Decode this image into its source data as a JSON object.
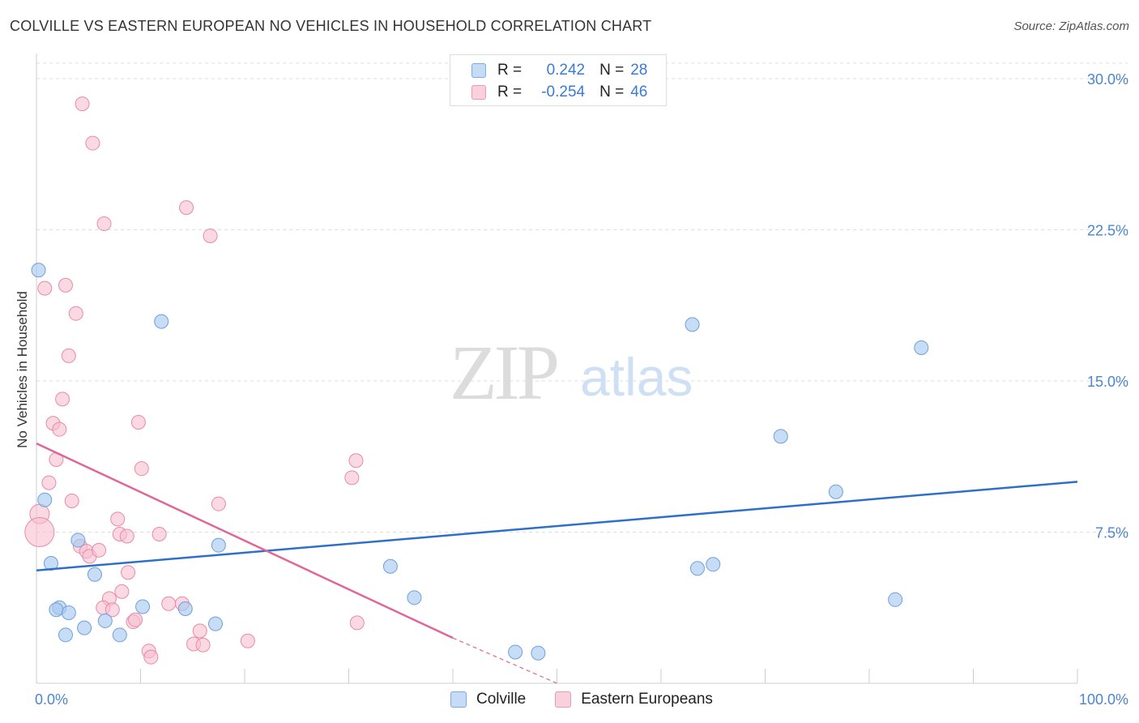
{
  "title": "COLVILLE VS EASTERN EUROPEAN NO VEHICLES IN HOUSEHOLD CORRELATION CHART",
  "source": "Source: ZipAtlas.com",
  "watermark": {
    "zip": "ZIP",
    "atlas": "atlas"
  },
  "legend": {
    "rows": [
      {
        "r_label": "R =",
        "r_value": "0.242",
        "n_label": "N =",
        "n_value": "28"
      },
      {
        "r_label": "R =",
        "r_value": "-0.254",
        "n_label": "N =",
        "n_value": "46"
      }
    ]
  },
  "colors": {
    "blue_fill": "#a9c9f0",
    "blue_stroke": "#6fa0dc",
    "blue_line": "#2f6fcc",
    "pink_fill": "#f7c0d0",
    "pink_stroke": "#e98aa6",
    "pink_line": "#e0669a",
    "tick_text": "#4a86d0"
  },
  "chart_data": {
    "type": "scatter",
    "title": "COLVILLE VS EASTERN EUROPEAN NO VEHICLES IN HOUSEHOLD CORRELATION CHART",
    "xlabel": "",
    "ylabel": "No Vehicles in Household",
    "xlim": [
      0,
      100
    ],
    "ylim": [
      0,
      30.0
    ],
    "x_tick_labels": [
      "0.0%",
      "100.0%"
    ],
    "y_ticks": [
      7.5,
      15.0,
      22.5,
      30.0
    ],
    "y_tick_labels": [
      "7.5%",
      "15.0%",
      "22.5%",
      "30.0%"
    ],
    "series": [
      {
        "name": "Colville",
        "r": 0.242,
        "n": 28,
        "trend": {
          "x0": 0,
          "y0": 5.6,
          "x1": 100,
          "y1": 10.0
        },
        "points": [
          [
            0.2,
            20.5
          ],
          [
            1.4,
            5.95
          ],
          [
            0.8,
            9.1
          ],
          [
            4.0,
            7.1
          ],
          [
            12.0,
            17.95
          ],
          [
            17.5,
            6.85
          ],
          [
            2.2,
            3.75
          ],
          [
            4.6,
            2.75
          ],
          [
            1.9,
            3.65
          ],
          [
            3.1,
            3.5
          ],
          [
            5.6,
            5.4
          ],
          [
            2.8,
            2.4
          ],
          [
            6.6,
            3.1
          ],
          [
            8.0,
            2.4
          ],
          [
            10.2,
            3.8
          ],
          [
            14.3,
            3.7
          ],
          [
            17.2,
            2.95
          ],
          [
            34.0,
            5.8
          ],
          [
            36.3,
            4.25
          ],
          [
            46.0,
            1.55
          ],
          [
            48.2,
            1.5
          ],
          [
            63.5,
            5.7
          ],
          [
            65.0,
            5.9
          ],
          [
            63.0,
            17.8
          ],
          [
            71.5,
            12.25
          ],
          [
            76.8,
            9.5
          ],
          [
            82.5,
            4.15
          ],
          [
            85.0,
            16.65
          ]
        ]
      },
      {
        "name": "Eastern Europeans",
        "r": -0.254,
        "n": 46,
        "trend": {
          "x0": 0,
          "y0": 11.9,
          "x1": 40.0,
          "y1": 2.25,
          "dash_to_x": 50.0,
          "dash_to_y": 0
        },
        "points": [
          [
            4.4,
            28.75
          ],
          [
            5.4,
            26.8
          ],
          [
            6.5,
            22.8
          ],
          [
            14.4,
            23.6
          ],
          [
            16.7,
            22.2
          ],
          [
            0.8,
            19.6
          ],
          [
            2.8,
            19.75
          ],
          [
            3.8,
            18.35
          ],
          [
            3.1,
            16.25
          ],
          [
            2.5,
            14.1
          ],
          [
            1.6,
            12.9
          ],
          [
            2.2,
            12.6
          ],
          [
            9.8,
            12.95
          ],
          [
            1.9,
            11.1
          ],
          [
            1.2,
            9.95
          ],
          [
            10.1,
            10.65
          ],
          [
            3.4,
            9.05
          ],
          [
            7.8,
            8.15
          ],
          [
            17.5,
            8.9
          ],
          [
            30.3,
            10.2
          ],
          [
            30.7,
            11.05
          ],
          [
            0.3,
            8.4
          ],
          [
            0.3,
            7.5
          ],
          [
            8.0,
            7.4
          ],
          [
            8.7,
            7.3
          ],
          [
            11.8,
            7.4
          ],
          [
            4.2,
            6.8
          ],
          [
            4.8,
            6.55
          ],
          [
            5.1,
            6.3
          ],
          [
            6.0,
            6.6
          ],
          [
            8.8,
            5.5
          ],
          [
            8.2,
            4.55
          ],
          [
            7.0,
            4.2
          ],
          [
            6.4,
            3.75
          ],
          [
            7.3,
            3.65
          ],
          [
            9.3,
            3.05
          ],
          [
            9.5,
            3.15
          ],
          [
            12.7,
            3.95
          ],
          [
            14.0,
            3.95
          ],
          [
            15.7,
            2.6
          ],
          [
            15.1,
            1.95
          ],
          [
            16.0,
            1.9
          ],
          [
            10.8,
            1.6
          ],
          [
            11.0,
            1.3
          ],
          [
            20.3,
            2.1
          ],
          [
            30.8,
            3.0
          ]
        ]
      }
    ]
  },
  "bottom_legend": [
    {
      "label": "Colville"
    },
    {
      "label": "Eastern Europeans"
    }
  ]
}
